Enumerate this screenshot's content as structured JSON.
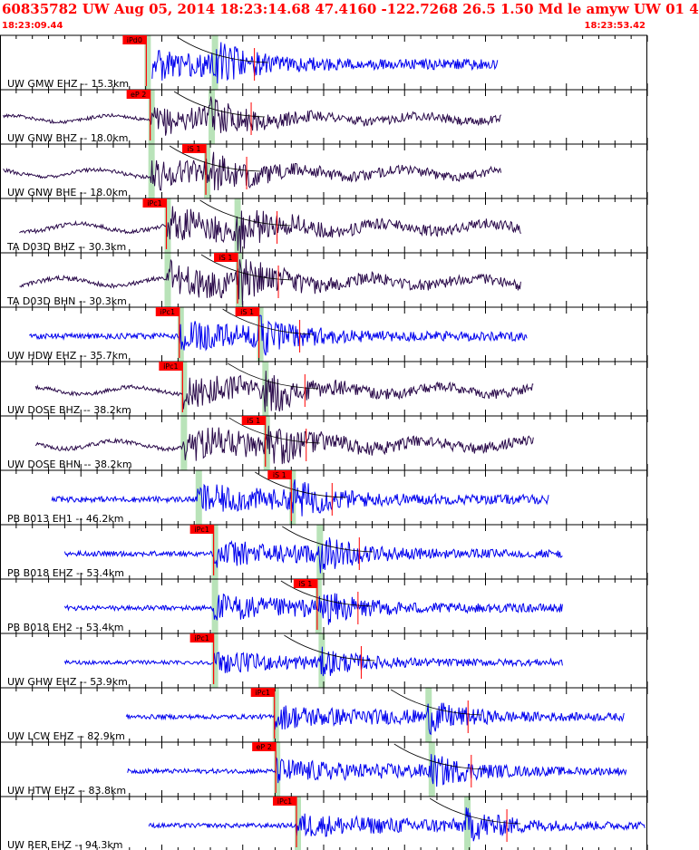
{
  "header": {
    "title": "60835782 UW Aug 05, 2014 18:23:14.68    47.4160 -122.7268 26.5 1.50 Md le amyw UW 01    4",
    "time_start": "18:23:09.44",
    "time_end": "18:23:53.42"
  },
  "colors": {
    "title": "#ff0000",
    "ehz_trace": "#0000ee",
    "broadband_trace": "#2a0a4a",
    "pick_box": "#ff0000",
    "pick_text": "#000000",
    "window_band": "#b9e3b9",
    "axis": "#000000"
  },
  "chart_data": {
    "type": "seismogram",
    "time_range": [
      "18:23:09.44",
      "18:23:53.42"
    ],
    "traces": [
      {
        "label": "UW GMW EHZ -- 15.3km",
        "channel": "EHZ",
        "picks": [
          {
            "label": "iPd0",
            "kind": "P"
          }
        ],
        "data_span": [
          0.235,
          0.77
        ],
        "p_onset": 0.226,
        "s_onset": 0.33,
        "amp": 0.55
      },
      {
        "label": "UW GNW BHZ -- 18.0km",
        "channel": "BHZ",
        "picks": [
          {
            "label": "eP 2",
            "kind": "P"
          }
        ],
        "data_span": [
          0.005,
          0.775
        ],
        "p_onset": 0.232,
        "s_onset": 0.325,
        "amp": 0.45
      },
      {
        "label": "UW GNW BHE -- 18.0km",
        "channel": "BHE",
        "picks": [
          {
            "label": "iS 1",
            "kind": "S"
          }
        ],
        "data_span": [
          0.005,
          0.775
        ],
        "p_onset": 0.232,
        "s_onset": 0.318,
        "amp": 0.5
      },
      {
        "label": "TA D03D BHZ -- 30.3km",
        "channel": "BHZ",
        "picks": [
          {
            "label": "iPc1",
            "kind": "P"
          }
        ],
        "data_span": [
          0.03,
          0.805
        ],
        "p_onset": 0.257,
        "s_onset": 0.365,
        "amp": 0.55
      },
      {
        "label": "TA D03D BHN -- 30.3km",
        "channel": "BHN",
        "picks": [
          {
            "label": "iS 1",
            "kind": "S"
          }
        ],
        "data_span": [
          0.03,
          0.805
        ],
        "p_onset": 0.257,
        "s_onset": 0.367,
        "amp": 0.55
      },
      {
        "label": "UW HDW EHZ -- 35.7km",
        "channel": "EHZ",
        "picks": [
          {
            "label": "iPc1",
            "kind": "P"
          },
          {
            "label": "iS 1",
            "kind": "S"
          }
        ],
        "data_span": [
          0.045,
          0.815
        ],
        "p_onset": 0.277,
        "s_onset": 0.4,
        "amp": 0.5
      },
      {
        "label": "UW DOSE BHZ -- 38.2km",
        "channel": "BHZ",
        "picks": [
          {
            "label": "iPc1",
            "kind": "P"
          }
        ],
        "data_span": [
          0.055,
          0.825
        ],
        "p_onset": 0.282,
        "s_onset": 0.408,
        "amp": 0.5
      },
      {
        "label": "UW DOSE BHN -- 38.2km",
        "channel": "BHN",
        "picks": [
          {
            "label": "iS 1",
            "kind": "S"
          }
        ],
        "data_span": [
          0.055,
          0.825
        ],
        "p_onset": 0.282,
        "s_onset": 0.41,
        "amp": 0.55
      },
      {
        "label": "PB B013 EH1 -- 46.2km",
        "channel": "EH1",
        "picks": [
          {
            "label": "iS 1",
            "kind": "S"
          }
        ],
        "data_span": [
          0.08,
          0.848
        ],
        "p_onset": 0.305,
        "s_onset": 0.45,
        "amp": 0.5
      },
      {
        "label": "PB B018 EHZ -- 53.4km",
        "channel": "EHZ",
        "picks": [
          {
            "label": "iPc1",
            "kind": "P"
          }
        ],
        "data_span": [
          0.1,
          0.87
        ],
        "p_onset": 0.33,
        "s_onset": 0.492,
        "amp": 0.45
      },
      {
        "label": "PB B018 EH2 -- 53.4km",
        "channel": "EH2",
        "picks": [
          {
            "label": "iS 1",
            "kind": "S"
          }
        ],
        "data_span": [
          0.1,
          0.87
        ],
        "p_onset": 0.33,
        "s_onset": 0.49,
        "amp": 0.45
      },
      {
        "label": "UW GHW EHZ -- 53.9km",
        "channel": "EHZ",
        "picks": [
          {
            "label": "iPc1",
            "kind": "P"
          }
        ],
        "data_span": [
          0.1,
          0.87
        ],
        "p_onset": 0.33,
        "s_onset": 0.495,
        "amp": 0.35
      },
      {
        "label": "UW LCW EHZ -- 82.9km",
        "channel": "EHZ",
        "picks": [
          {
            "label": "iPc1",
            "kind": "P"
          }
        ],
        "data_span": [
          0.195,
          0.965
        ],
        "p_onset": 0.424,
        "s_onset": 0.66,
        "amp": 0.4
      },
      {
        "label": "UW HTW EHZ -- 83.8km",
        "channel": "EHZ",
        "picks": [
          {
            "label": "eP 2",
            "kind": "P"
          }
        ],
        "data_span": [
          0.197,
          0.968
        ],
        "p_onset": 0.426,
        "s_onset": 0.665,
        "amp": 0.4
      },
      {
        "label": "UW RER EHZ -- 94.3km",
        "channel": "EHZ",
        "picks": [
          {
            "label": "iPc1",
            "kind": "P"
          }
        ],
        "data_span": [
          0.23,
          1.0
        ],
        "p_onset": 0.458,
        "s_onset": 0.72,
        "amp": 0.4
      }
    ]
  }
}
